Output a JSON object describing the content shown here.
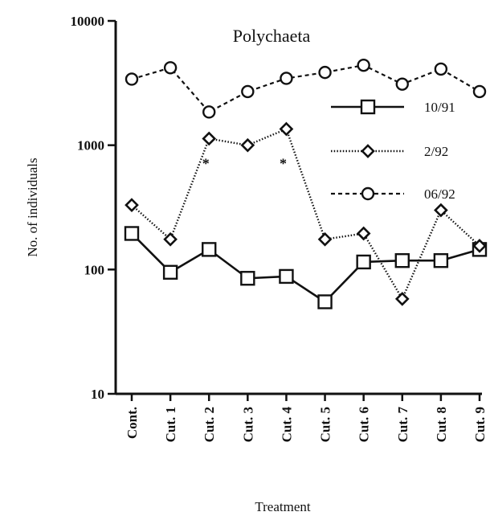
{
  "chart_data": {
    "type": "line",
    "title": "Polychaeta",
    "xlabel": "Treatment",
    "ylabel": "No. of individuals",
    "yscale": "log",
    "ylim": [
      10,
      10000
    ],
    "yticks": [
      "10",
      "100",
      "1000",
      "10000"
    ],
    "ytick_values": [
      10,
      100,
      1000,
      10000
    ],
    "categories": [
      "Cont.",
      "Cut. 1",
      "Cut. 2",
      "Cut. 3",
      "Cut. 4",
      "Cut. 5",
      "Cut. 6",
      "Cut. 7",
      "Cut. 8",
      "Cut. 9"
    ],
    "legend_position": "right",
    "grid": false,
    "series": [
      {
        "name": "10/91",
        "marker": "square",
        "line": "solid",
        "values": [
          195,
          95,
          145,
          85,
          88,
          55,
          115,
          118,
          118,
          145
        ]
      },
      {
        "name": "2/92",
        "marker": "diamond",
        "line": "dotted",
        "values": [
          330,
          175,
          1130,
          1000,
          1350,
          175,
          195,
          58,
          300,
          155
        ]
      },
      {
        "name": "06/92",
        "marker": "circle",
        "line": "dashed",
        "values": [
          3400,
          4200,
          1850,
          2700,
          3450,
          3850,
          4400,
          3100,
          4100,
          2700
        ]
      }
    ],
    "annotations": [
      {
        "text": "*",
        "category": "Cut. 2",
        "value": 780
      },
      {
        "text": "*",
        "category": "Cut. 4",
        "value": 780
      }
    ]
  }
}
